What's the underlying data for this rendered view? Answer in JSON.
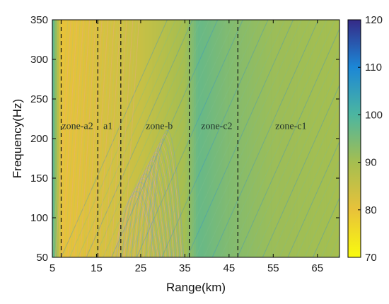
{
  "chart_data": {
    "type": "heatmap",
    "title": "",
    "xlabel": "Range(km)",
    "ylabel": "Frequency(Hz)",
    "xlim": [
      5,
      70
    ],
    "ylim": [
      50,
      350
    ],
    "xticks": [
      5,
      15,
      25,
      35,
      45,
      55,
      65
    ],
    "yticks": [
      50,
      100,
      150,
      200,
      250,
      300,
      350
    ],
    "colorbar": {
      "range": [
        70,
        120
      ],
      "ticks": [
        70,
        80,
        90,
        100,
        110,
        120
      ],
      "colormap": "parula-reversed",
      "low_color": "#f9fb0e",
      "high_color": "#352a87"
    },
    "boundaries_km": [
      7,
      15.3,
      20.5,
      36,
      47
    ],
    "zones": [
      {
        "label": "zone-a2",
        "x": 10.7,
        "y": 212
      },
      {
        "label": "a1",
        "x": 17.6,
        "y": 212
      },
      {
        "label": "zone-b",
        "x": 29.2,
        "y": 212
      },
      {
        "label": "zone-c2",
        "x": 42.2,
        "y": 212
      },
      {
        "label": "zone-c1",
        "x": 59.0,
        "y": 212
      }
    ],
    "approx_level_by_range": [
      {
        "range_km": 5,
        "level": 100
      },
      {
        "range_km": 7,
        "level": 80
      },
      {
        "range_km": 15,
        "level": 82
      },
      {
        "range_km": 25,
        "level": 85
      },
      {
        "range_km": 35,
        "level": 90
      },
      {
        "range_km": 38,
        "level": 97
      },
      {
        "range_km": 45,
        "level": 94
      },
      {
        "range_km": 55,
        "level": 91
      },
      {
        "range_km": 70,
        "level": 90
      }
    ]
  }
}
